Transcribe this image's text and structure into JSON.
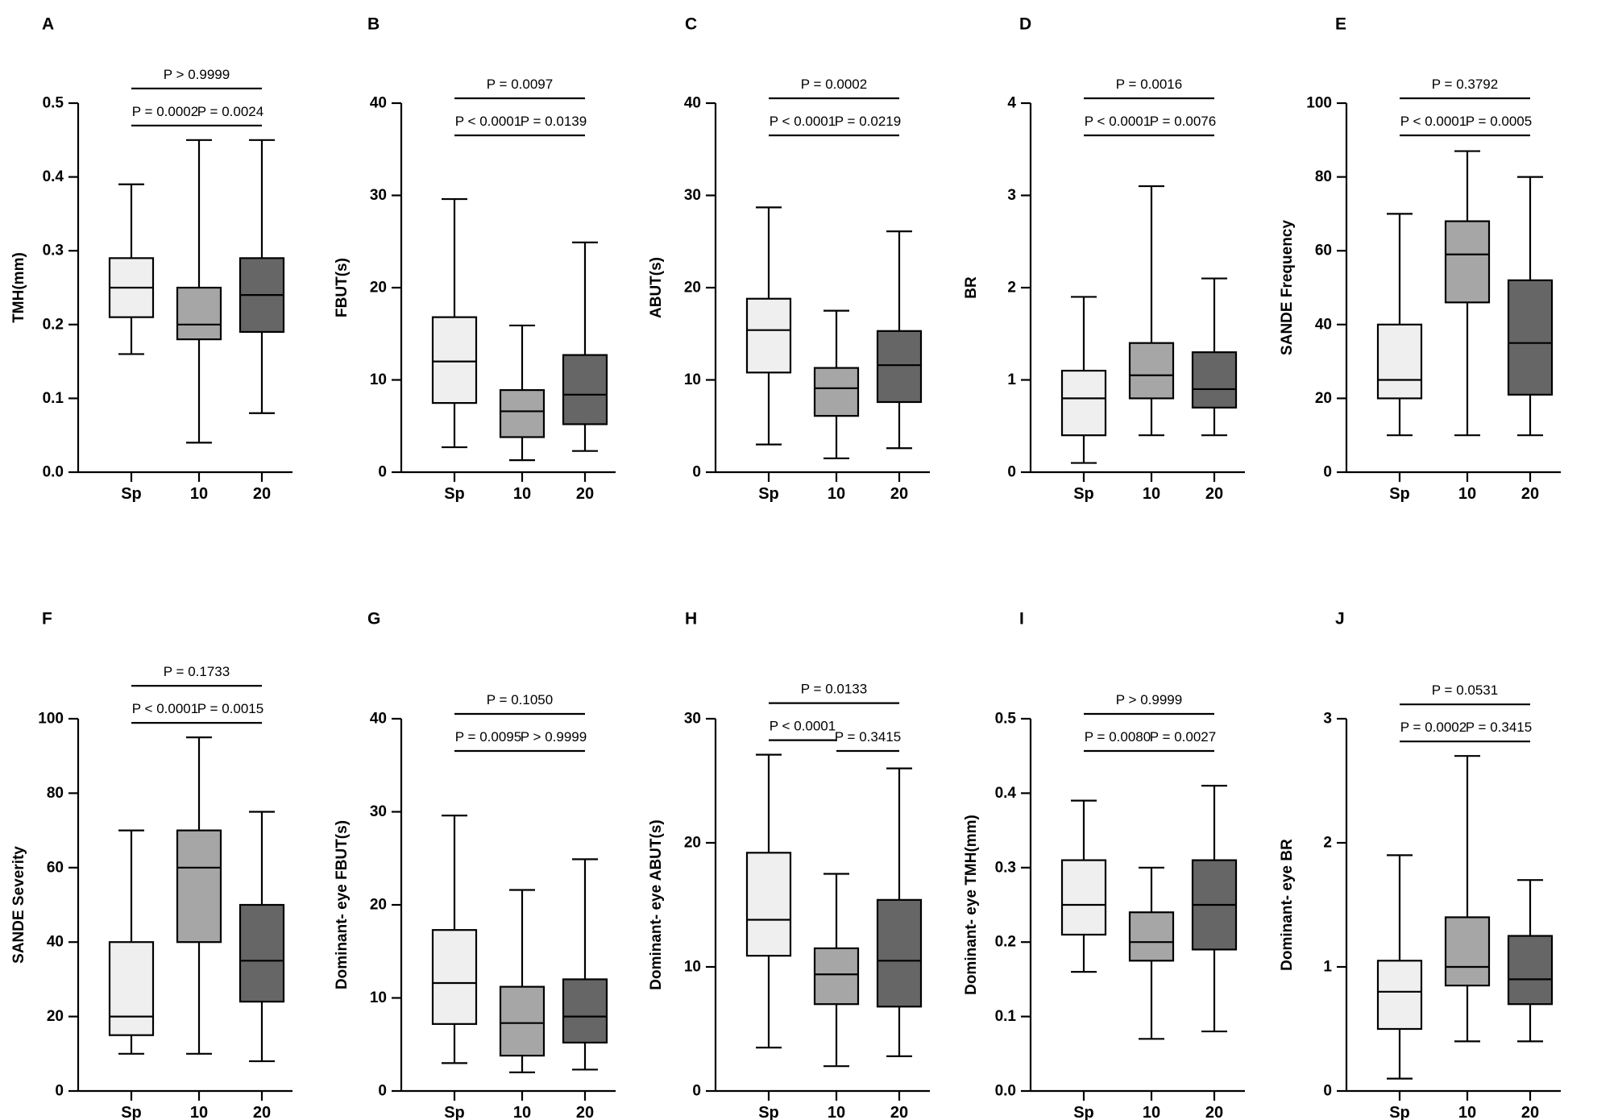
{
  "chart_data": [
    {
      "type": "box",
      "panel": "A",
      "ylabel": "TMH(mm)",
      "ylim": [
        0,
        0.5
      ],
      "yticks": [
        "0.0",
        "0.1",
        "0.2",
        "0.3",
        "0.4",
        "0.5"
      ],
      "categories": [
        "Sp",
        "10",
        "20"
      ],
      "groups": [
        {
          "label": "Sp",
          "min": 0.16,
          "q1": 0.21,
          "median": 0.25,
          "q3": 0.29,
          "max": 0.39
        },
        {
          "label": "10",
          "min": 0.04,
          "q1": 0.18,
          "median": 0.2,
          "q3": 0.25,
          "max": 0.45
        },
        {
          "label": "20",
          "min": 0.08,
          "q1": 0.19,
          "median": 0.24,
          "q3": 0.29,
          "max": 0.45
        }
      ],
      "comparisons": [
        {
          "from": 0,
          "to": 1,
          "label": "P = 0.0002"
        },
        {
          "from": 1,
          "to": 2,
          "label": "P = 0.0024"
        },
        {
          "from": 0,
          "to": 2,
          "label": "P > 0.9999"
        }
      ]
    },
    {
      "type": "box",
      "panel": "B",
      "ylabel": "FBUT(s)",
      "ylim": [
        0,
        40
      ],
      "yticks": [
        "0",
        "10",
        "20",
        "30",
        "40"
      ],
      "categories": [
        "Sp",
        "10",
        "20"
      ],
      "groups": [
        {
          "label": "Sp",
          "min": 2.7,
          "q1": 7.5,
          "median": 12.0,
          "q3": 16.8,
          "max": 29.6
        },
        {
          "label": "10",
          "min": 1.3,
          "q1": 3.8,
          "median": 6.6,
          "q3": 8.9,
          "max": 15.9
        },
        {
          "label": "20",
          "min": 2.3,
          "q1": 5.2,
          "median": 8.4,
          "q3": 12.7,
          "max": 24.9
        }
      ],
      "comparisons": [
        {
          "from": 0,
          "to": 1,
          "label": "P < 0.0001"
        },
        {
          "from": 1,
          "to": 2,
          "label": "P = 0.0139"
        },
        {
          "from": 0,
          "to": 2,
          "label": "P = 0.0097"
        }
      ]
    },
    {
      "type": "box",
      "panel": "C",
      "ylabel": "ABUT(s)",
      "ylim": [
        0,
        40
      ],
      "yticks": [
        "0",
        "10",
        "20",
        "30",
        "40"
      ],
      "categories": [
        "Sp",
        "10",
        "20"
      ],
      "groups": [
        {
          "label": "Sp",
          "min": 3.0,
          "q1": 10.8,
          "median": 15.4,
          "q3": 18.8,
          "max": 28.7
        },
        {
          "label": "10",
          "min": 1.5,
          "q1": 6.1,
          "median": 9.1,
          "q3": 11.3,
          "max": 17.5
        },
        {
          "label": "20",
          "min": 2.6,
          "q1": 7.6,
          "median": 11.6,
          "q3": 15.3,
          "max": 26.1
        }
      ],
      "comparisons": [
        {
          "from": 0,
          "to": 1,
          "label": "P < 0.0001"
        },
        {
          "from": 1,
          "to": 2,
          "label": "P = 0.0219"
        },
        {
          "from": 0,
          "to": 2,
          "label": "P = 0.0002"
        }
      ]
    },
    {
      "type": "box",
      "panel": "D",
      "ylabel": "BR",
      "ylim": [
        0,
        4
      ],
      "yticks": [
        "0",
        "1",
        "2",
        "3",
        "4"
      ],
      "categories": [
        "Sp",
        "10",
        "20"
      ],
      "groups": [
        {
          "label": "Sp",
          "min": 0.1,
          "q1": 0.4,
          "median": 0.8,
          "q3": 1.1,
          "max": 1.9
        },
        {
          "label": "10",
          "min": 0.4,
          "q1": 0.8,
          "median": 1.05,
          "q3": 1.4,
          "max": 3.1
        },
        {
          "label": "20",
          "min": 0.4,
          "q1": 0.7,
          "median": 0.9,
          "q3": 1.3,
          "max": 2.1
        }
      ],
      "comparisons": [
        {
          "from": 0,
          "to": 1,
          "label": "P < 0.0001"
        },
        {
          "from": 1,
          "to": 2,
          "label": "P = 0.0076"
        },
        {
          "from": 0,
          "to": 2,
          "label": "P = 0.0016"
        }
      ]
    },
    {
      "type": "box",
      "panel": "E",
      "ylabel": "SANDE Frequency",
      "ylim": [
        0,
        100
      ],
      "yticks": [
        "0",
        "20",
        "40",
        "60",
        "80",
        "100"
      ],
      "categories": [
        "Sp",
        "10",
        "20"
      ],
      "groups": [
        {
          "label": "Sp",
          "min": 10,
          "q1": 20,
          "median": 25,
          "q3": 40,
          "max": 70
        },
        {
          "label": "10",
          "min": 10,
          "q1": 46,
          "median": 59,
          "q3": 68,
          "max": 87
        },
        {
          "label": "20",
          "min": 10,
          "q1": 21,
          "median": 35,
          "q3": 52,
          "max": 80
        }
      ],
      "comparisons": [
        {
          "from": 0,
          "to": 1,
          "label": "P < 0.0001"
        },
        {
          "from": 1,
          "to": 2,
          "label": "P = 0.0005"
        },
        {
          "from": 0,
          "to": 2,
          "label": "P = 0.3792"
        }
      ]
    },
    {
      "type": "box",
      "panel": "F",
      "ylabel": "SANDE Severity",
      "ylim": [
        0,
        100
      ],
      "yticks": [
        "0",
        "20",
        "40",
        "60",
        "80",
        "100"
      ],
      "categories": [
        "Sp",
        "10",
        "20"
      ],
      "groups": [
        {
          "label": "Sp",
          "min": 10,
          "q1": 15,
          "median": 20,
          "q3": 40,
          "max": 70
        },
        {
          "label": "10",
          "min": 10,
          "q1": 40,
          "median": 60,
          "q3": 70,
          "max": 95
        },
        {
          "label": "20",
          "min": 8,
          "q1": 24,
          "median": 35,
          "q3": 50,
          "max": 75
        }
      ],
      "comparisons": [
        {
          "from": 0,
          "to": 1,
          "label": "P < 0.0001"
        },
        {
          "from": 1,
          "to": 2,
          "label": "P = 0.0015"
        },
        {
          "from": 0,
          "to": 2,
          "label": "P = 0.1733"
        }
      ]
    },
    {
      "type": "box",
      "panel": "G",
      "ylabel": "Dominant- eye FBUT(s)",
      "ylim": [
        0,
        40
      ],
      "yticks": [
        "0",
        "10",
        "20",
        "30",
        "40"
      ],
      "categories": [
        "Sp",
        "10",
        "20"
      ],
      "groups": [
        {
          "label": "Sp",
          "min": 3.0,
          "q1": 7.2,
          "median": 11.6,
          "q3": 17.3,
          "max": 29.6
        },
        {
          "label": "10",
          "min": 2.0,
          "q1": 3.8,
          "median": 7.3,
          "q3": 11.2,
          "max": 21.6
        },
        {
          "label": "20",
          "min": 2.3,
          "q1": 5.2,
          "median": 8.0,
          "q3": 12.0,
          "max": 24.9
        }
      ],
      "comparisons": [
        {
          "from": 0,
          "to": 1,
          "label": "P = 0.0095"
        },
        {
          "from": 1,
          "to": 2,
          "label": "P > 0.9999"
        },
        {
          "from": 0,
          "to": 2,
          "label": "P = 0.1050"
        }
      ]
    },
    {
      "type": "box",
      "panel": "H",
      "ylabel": "Dominant- eye ABUT(s)",
      "ylim": [
        0,
        30
      ],
      "yticks": [
        "0",
        "10",
        "20",
        "30"
      ],
      "categories": [
        "Sp",
        "10",
        "20"
      ],
      "groups": [
        {
          "label": "Sp",
          "min": 3.5,
          "q1": 10.9,
          "median": 13.8,
          "q3": 19.2,
          "max": 27.1
        },
        {
          "label": "10",
          "min": 2.0,
          "q1": 7.0,
          "median": 9.4,
          "q3": 11.5,
          "max": 17.5
        },
        {
          "label": "20",
          "min": 2.8,
          "q1": 6.8,
          "median": 10.5,
          "q3": 15.4,
          "max": 26.0
        }
      ],
      "comparisons": [
        {
          "from": 0,
          "to": 1,
          "label": "P < 0.0001"
        },
        {
          "from": 1,
          "to": 2,
          "label": "P = 0.3415"
        },
        {
          "from": 0,
          "to": 2,
          "label": "P = 0.0133"
        }
      ]
    },
    {
      "type": "box",
      "panel": "I",
      "ylabel": "Dominant- eye TMH(mm)",
      "ylim": [
        0,
        0.5
      ],
      "yticks": [
        "0.0",
        "0.1",
        "0.2",
        "0.3",
        "0.4",
        "0.5"
      ],
      "categories": [
        "Sp",
        "10",
        "20"
      ],
      "groups": [
        {
          "label": "Sp",
          "min": 0.16,
          "q1": 0.21,
          "median": 0.25,
          "q3": 0.31,
          "max": 0.39
        },
        {
          "label": "10",
          "min": 0.07,
          "q1": 0.175,
          "median": 0.2,
          "q3": 0.24,
          "max": 0.3
        },
        {
          "label": "20",
          "min": 0.08,
          "q1": 0.19,
          "median": 0.25,
          "q3": 0.31,
          "max": 0.41
        }
      ],
      "comparisons": [
        {
          "from": 0,
          "to": 1,
          "label": "P = 0.0080"
        },
        {
          "from": 1,
          "to": 2,
          "label": "P = 0.0027"
        },
        {
          "from": 0,
          "to": 2,
          "label": "P > 0.9999"
        }
      ]
    },
    {
      "type": "box",
      "panel": "J",
      "ylabel": "Dominant- eye BR",
      "ylim": [
        0,
        3
      ],
      "yticks": [
        "0",
        "1",
        "2",
        "3"
      ],
      "categories": [
        "Sp",
        "10",
        "20"
      ],
      "groups": [
        {
          "label": "Sp",
          "min": 0.1,
          "q1": 0.5,
          "median": 0.8,
          "q3": 1.05,
          "max": 1.9
        },
        {
          "label": "10",
          "min": 0.4,
          "q1": 0.85,
          "median": 1.0,
          "q3": 1.4,
          "max": 2.7
        },
        {
          "label": "20",
          "min": 0.4,
          "q1": 0.7,
          "median": 0.9,
          "q3": 1.25,
          "max": 1.7
        }
      ],
      "comparisons": [
        {
          "from": 0,
          "to": 1,
          "label": "P = 0.0002"
        },
        {
          "from": 1,
          "to": 2,
          "label": "P = 0.3415"
        },
        {
          "from": 0,
          "to": 2,
          "label": "P = 0.0531"
        }
      ]
    }
  ],
  "colors": {
    "group_fills": [
      "#efefef",
      "#a6a6a6",
      "#666666"
    ],
    "stroke": "#000000"
  }
}
